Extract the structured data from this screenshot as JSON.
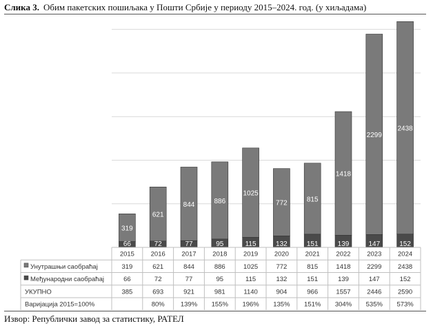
{
  "figure": {
    "label": "Слика 3.",
    "title": "Обим пакетских пошиљака у Пошти Србије у периоду 2015–2024. год. (у хиљадама)",
    "source": "Извор: Републички завод за статистику, РАТЕЛ"
  },
  "colors": {
    "domestic": "#7a7a7a",
    "international": "#4a4a4a",
    "grid": "#d9d9d9",
    "table_border": "#bfbfbf"
  },
  "chart_data": {
    "type": "bar",
    "stacked": true,
    "categories": [
      "2015",
      "2016",
      "2017",
      "2018",
      "2019",
      "2020",
      "2021",
      "2022",
      "2023",
      "2024"
    ],
    "series": [
      {
        "name": "Међународни саобраћај",
        "values": [
          66,
          72,
          77,
          95,
          115,
          132,
          151,
          139,
          147,
          152
        ]
      },
      {
        "name": "Унутрашњи саобраћај",
        "values": [
          319,
          621,
          844,
          886,
          1025,
          772,
          815,
          1418,
          2299,
          2438
        ]
      }
    ],
    "ylim": [
      0,
      2600
    ],
    "grid": true,
    "legend_placement": "data-table",
    "data_table": [
      {
        "label": "Унутрашњи саобраћај",
        "marker": "domestic",
        "values": [
          "319",
          "621",
          "844",
          "886",
          "1025",
          "772",
          "815",
          "1418",
          "2299",
          "2438"
        ]
      },
      {
        "label": "Међународни саобраћај",
        "marker": "international",
        "values": [
          "66",
          "72",
          "77",
          "95",
          "115",
          "132",
          "151",
          "139",
          "147",
          "152"
        ]
      },
      {
        "label": "УКУПНО",
        "marker": null,
        "values": [
          "385",
          "693",
          "921",
          "981",
          "1140",
          "904",
          "966",
          "1557",
          "2446",
          "2590"
        ]
      },
      {
        "label": "Варијација 2015=100%",
        "marker": null,
        "values": [
          "",
          "80%",
          "139%",
          "155%",
          "196%",
          "135%",
          "151%",
          "304%",
          "535%",
          "573%"
        ]
      }
    ]
  }
}
